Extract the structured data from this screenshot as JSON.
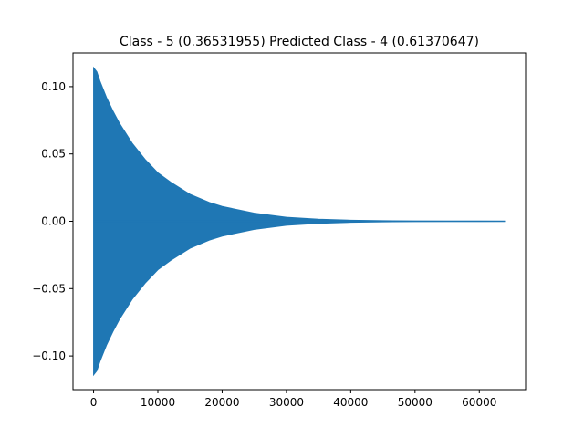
{
  "chart_data": {
    "type": "line",
    "title": "Class - 5 (0.36531955) Predicted Class - 4 (0.61370647)",
    "xlabel": "",
    "ylabel": "",
    "xlim": [
      -3200,
      67200
    ],
    "ylim": [
      -0.125,
      0.125
    ],
    "x_ticks": [
      0,
      10000,
      20000,
      30000,
      40000,
      50000,
      60000
    ],
    "x_tick_labels": [
      "0",
      "10000",
      "20000",
      "30000",
      "40000",
      "50000",
      "60000"
    ],
    "y_ticks": [
      -0.1,
      -0.05,
      0.0,
      0.05,
      0.1
    ],
    "y_tick_labels": [
      "−0.10",
      "−0.05",
      "0.00",
      "0.05",
      "0.10"
    ],
    "grid": false,
    "series": [
      {
        "color": "#1f77b4",
        "description": "decaying oscillating waveform (envelope shown)",
        "x": [
          0,
          500,
          1000,
          2000,
          3000,
          4000,
          6000,
          8000,
          10000,
          12000,
          15000,
          18000,
          20000,
          25000,
          30000,
          35000,
          40000,
          45000,
          50000,
          55000,
          60000,
          64000
        ],
        "upper": [
          0.114,
          0.111,
          0.104,
          0.092,
          0.082,
          0.073,
          0.058,
          0.046,
          0.036,
          0.029,
          0.02,
          0.014,
          0.011,
          0.006,
          0.003,
          0.0015,
          0.0008,
          0.0004,
          0.0002,
          0.0001,
          5e-05,
          0.0
        ],
        "lower": [
          -0.114,
          -0.111,
          -0.104,
          -0.092,
          -0.082,
          -0.073,
          -0.058,
          -0.046,
          -0.036,
          -0.029,
          -0.02,
          -0.014,
          -0.011,
          -0.006,
          -0.003,
          -0.0015,
          -0.0008,
          -0.0004,
          -0.0002,
          -0.0001,
          -5e-05,
          0.0
        ]
      }
    ]
  }
}
